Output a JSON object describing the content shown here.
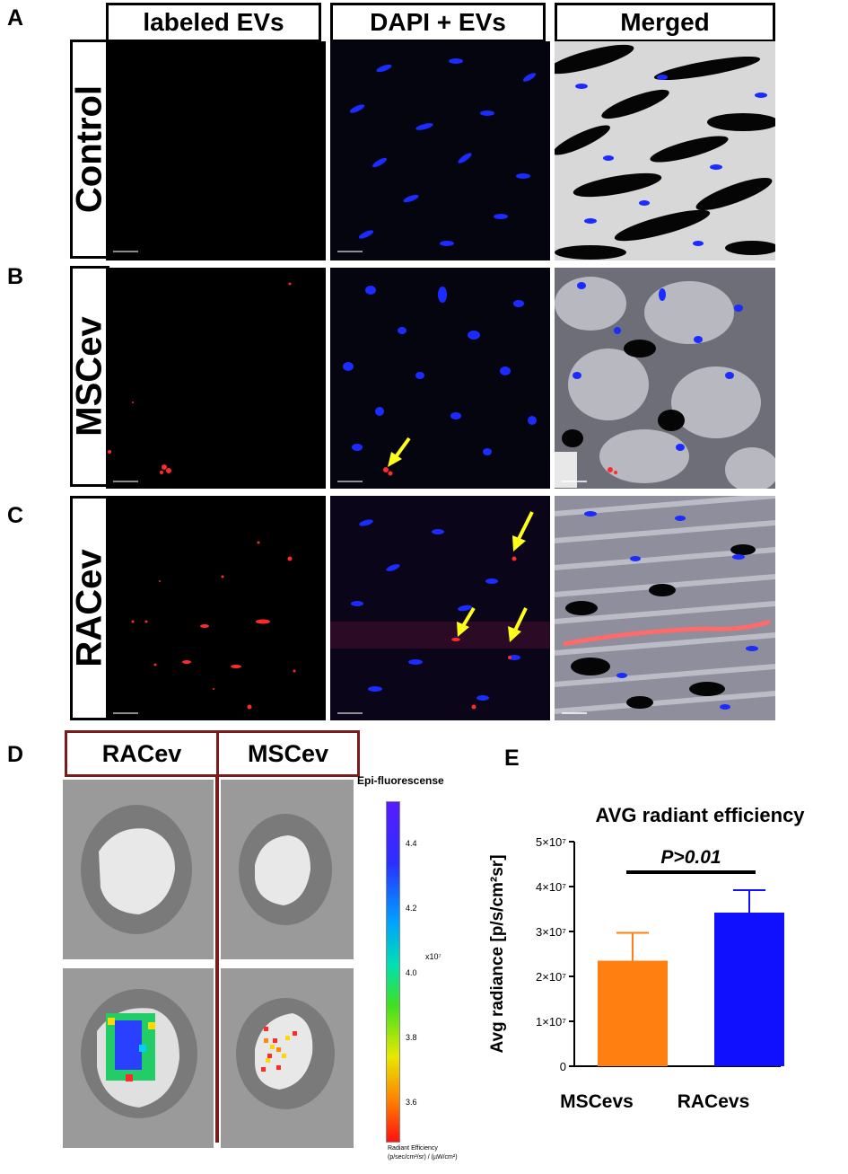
{
  "panel_letters": {
    "a": "A",
    "b": "B",
    "c": "C",
    "d": "D",
    "e": "E"
  },
  "column_headers": [
    "labeled EVs",
    "DAPI + EVs",
    "Merged"
  ],
  "row_headers": [
    "Control",
    "MSCev",
    "RACev"
  ],
  "panel_d": {
    "headers": [
      "RACev",
      "MSCev"
    ],
    "colorbar_title": "Epi-fluorescense",
    "colorbar_ticks": [
      "4.4",
      "4.2",
      "4.0",
      "3.8",
      "3.6"
    ],
    "colorbar_exponent": "x10⁷",
    "colorbar_unit_line1": "Radiant Efficiency",
    "colorbar_unit_line2": "(p/sec/cm²/sr) / (µW/cm²)"
  },
  "colors": {
    "nucleus": "#1a2cff",
    "ev_red": "#ff2a2a",
    "arrow": "#ffff1a",
    "orange_bar": "#ff8010",
    "blue_bar": "#1010ff",
    "frame_maroon": "#7b1c1c"
  },
  "chart_data": {
    "type": "bar",
    "title": "AVG radiant efficiency",
    "ylabel": "Avg radiance [p/s/cm²sr]",
    "categories": [
      "MSCevs",
      "RACevs"
    ],
    "values": [
      23500000,
      34200000
    ],
    "error": [
      6200000,
      5000000
    ],
    "colors": [
      "#ff8010",
      "#1010ff"
    ],
    "ylim": [
      0,
      50000000
    ],
    "yticks": [
      {
        "value": 0,
        "label": "0"
      },
      {
        "value": 10000000,
        "label": "1×10⁷"
      },
      {
        "value": 20000000,
        "label": "2×10⁷"
      },
      {
        "value": 30000000,
        "label": "3×10⁷"
      },
      {
        "value": 40000000,
        "label": "4×10⁷"
      },
      {
        "value": 50000000,
        "label": "5×10⁷"
      }
    ],
    "annotation": "P>0.01"
  }
}
